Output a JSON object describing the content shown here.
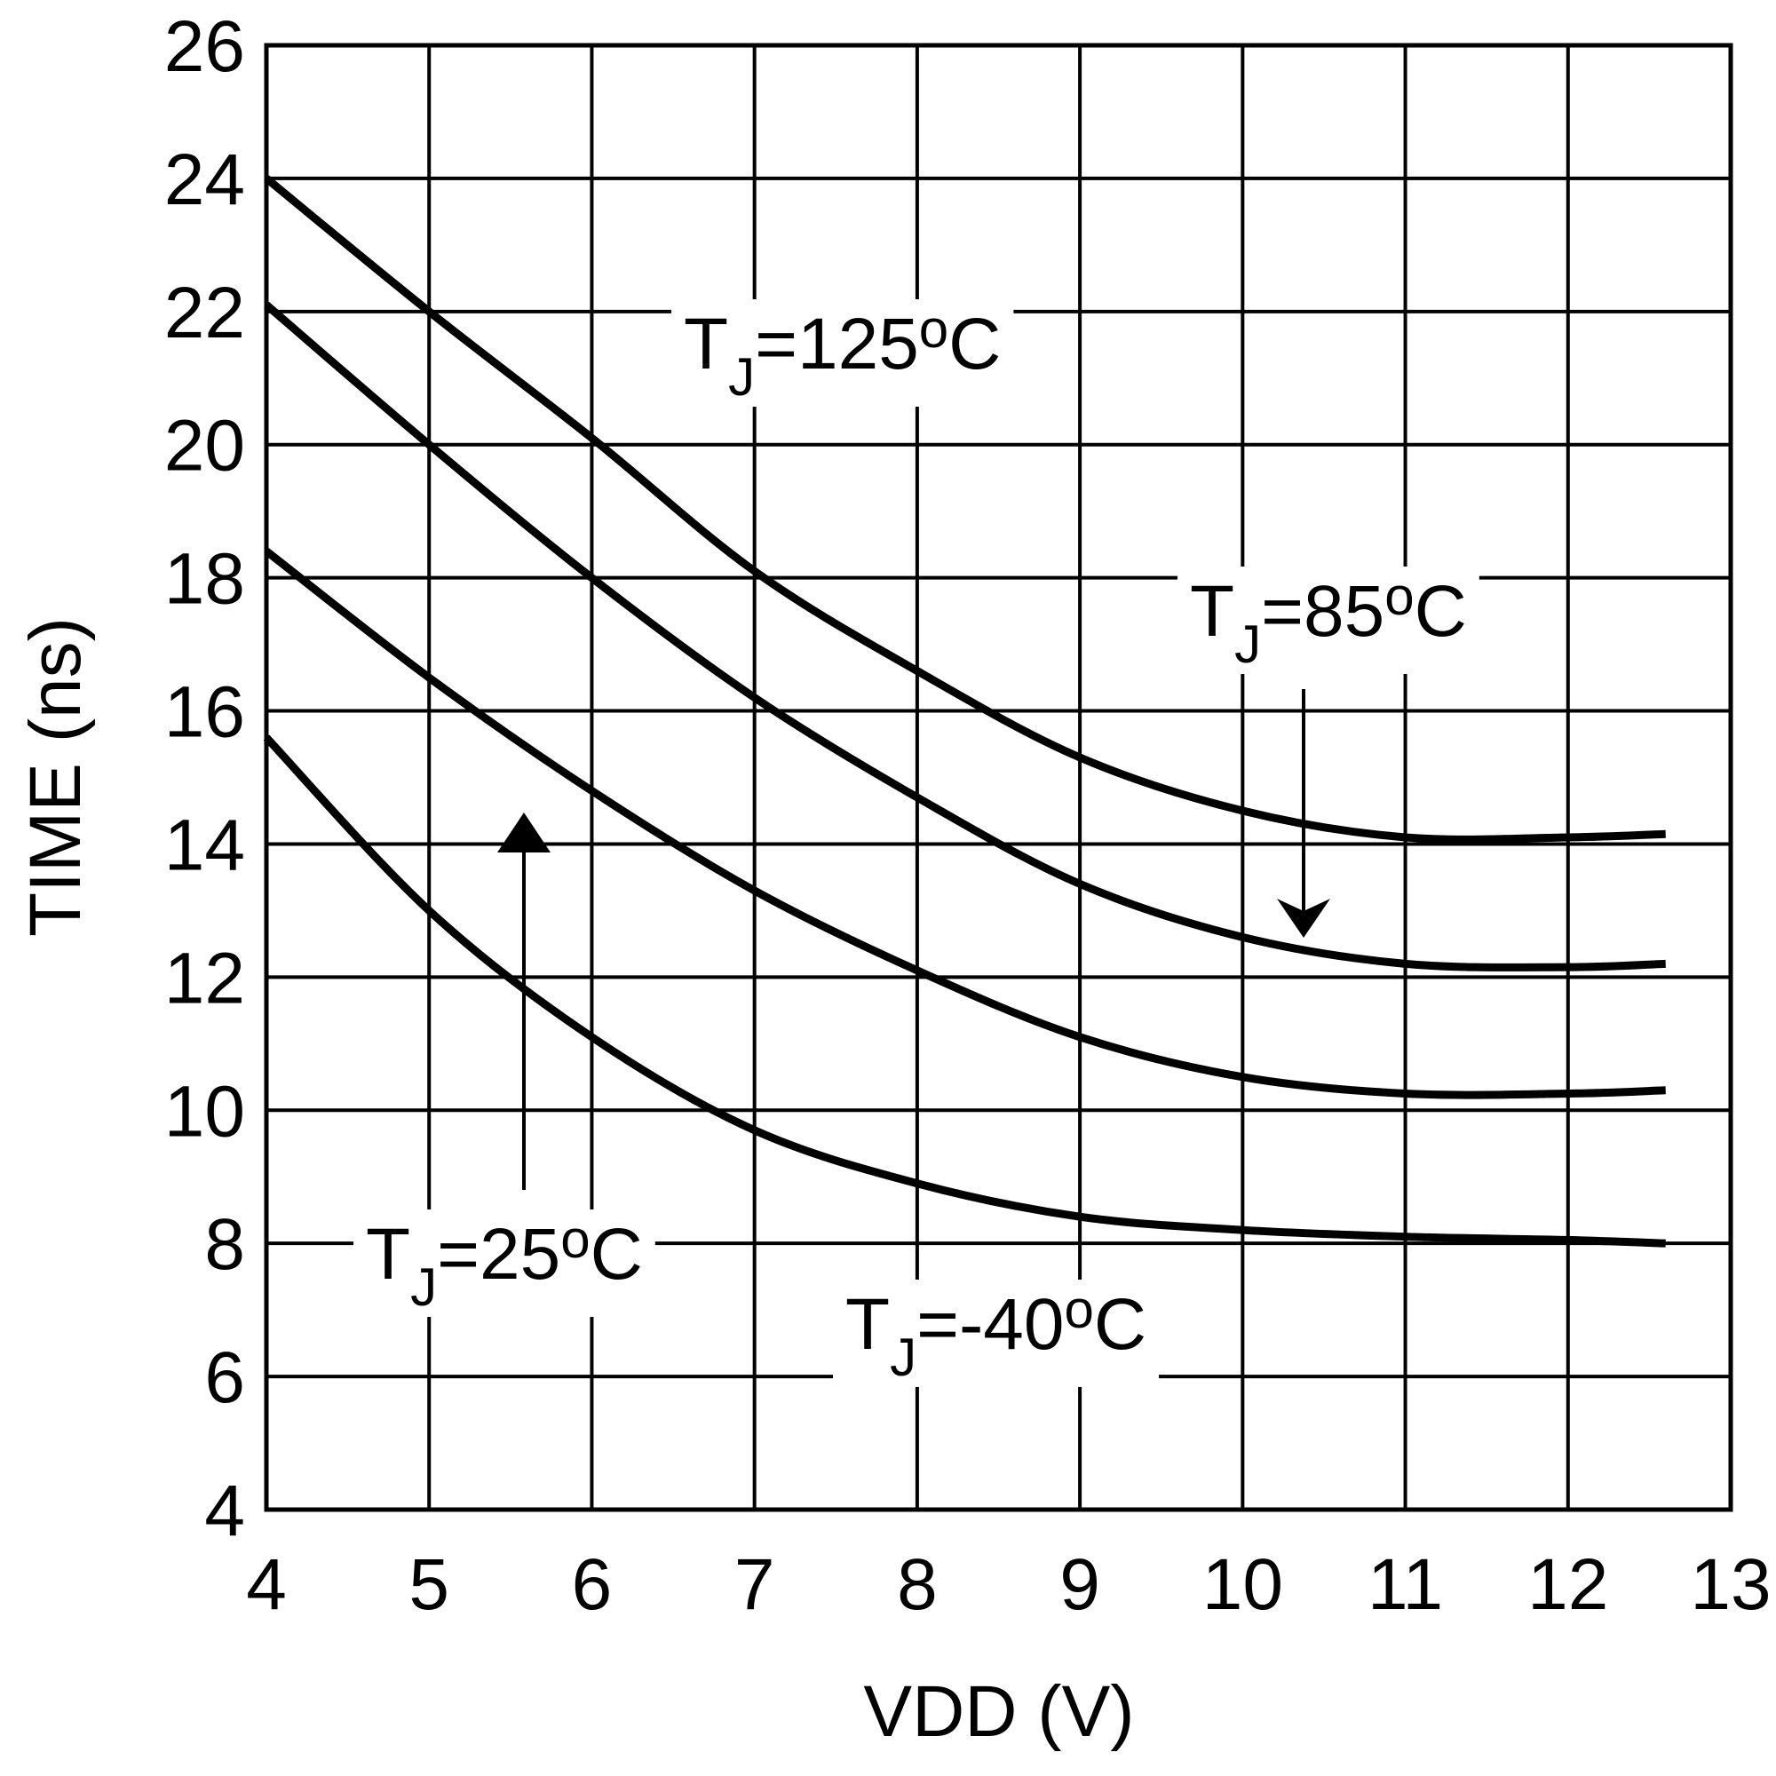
{
  "chart_data": {
    "type": "line",
    "x_label": "VDD (V)",
    "y_label": "TIME (ns)",
    "x": [
      4,
      5,
      6,
      7,
      8,
      9,
      10,
      11,
      12,
      12.6
    ],
    "xlim": [
      4,
      13
    ],
    "xticks": [
      4,
      5,
      6,
      7,
      8,
      9,
      10,
      11,
      12,
      13
    ],
    "ylim": [
      4,
      26
    ],
    "yticks": [
      4,
      6,
      8,
      10,
      12,
      14,
      16,
      18,
      20,
      22,
      24,
      26
    ],
    "grid": true,
    "series": [
      {
        "label": [
          "T",
          "J",
          "=125",
          "o",
          "C"
        ],
        "color": "#000000",
        "values": [
          24,
          22,
          20.1,
          18.1,
          16.6,
          15.3,
          14.5,
          14.1,
          14.1,
          14.15
        ]
      },
      {
        "label": [
          "T",
          "J",
          "=85",
          "o",
          "C"
        ],
        "color": "#000000",
        "values": [
          22.1,
          20,
          18,
          16.2,
          14.7,
          13.4,
          12.6,
          12.2,
          12.15,
          12.2
        ]
      },
      {
        "label": [
          "T",
          "J",
          "=25",
          "o",
          "C"
        ],
        "color": "#000000",
        "values": [
          18.4,
          16.5,
          14.8,
          13.3,
          12.1,
          11.1,
          10.5,
          10.25,
          10.25,
          10.3
        ]
      },
      {
        "label": [
          "T",
          "J",
          "=-40",
          "o",
          "C"
        ],
        "color": "#000000",
        "values": [
          15.6,
          13,
          11.1,
          9.7,
          8.9,
          8.4,
          8.2,
          8.1,
          8.05,
          8.0
        ]
      }
    ]
  }
}
